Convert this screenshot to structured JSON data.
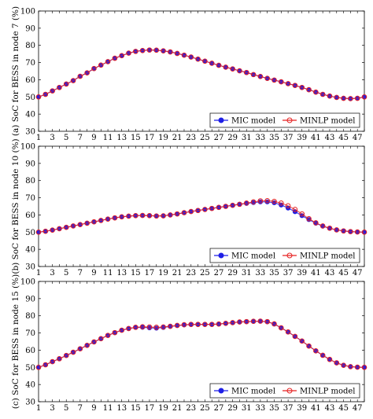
{
  "colors": {
    "mic": "#1f1fe6",
    "minlp": "#e62020",
    "line": "#cc2a8c"
  },
  "chart_data": [
    {
      "type": "line",
      "ylabel": "(a) SoC for BESS in node 7 (%)",
      "ylim": [
        30,
        100
      ],
      "yticks": [
        30,
        40,
        50,
        60,
        70,
        80,
        90,
        100
      ],
      "x": [
        1,
        2,
        3,
        4,
        5,
        6,
        7,
        8,
        9,
        10,
        11,
        12,
        13,
        14,
        15,
        16,
        17,
        18,
        19,
        20,
        21,
        22,
        23,
        24,
        25,
        26,
        27,
        28,
        29,
        30,
        31,
        32,
        33,
        34,
        35,
        36,
        37,
        38,
        39,
        40,
        41,
        42,
        43,
        44,
        45,
        46,
        47,
        48
      ],
      "xticks": [
        1,
        3,
        5,
        7,
        9,
        11,
        13,
        15,
        17,
        19,
        21,
        23,
        25,
        27,
        29,
        31,
        33,
        35,
        37,
        39,
        41,
        43,
        45,
        47
      ],
      "legend": "bottom-right",
      "series": [
        {
          "name": "MIC model",
          "values": [
            50,
            51.5,
            53.5,
            55.5,
            57.5,
            59.5,
            62,
            64,
            66.5,
            68.5,
            70.5,
            72.5,
            74,
            75.5,
            76.5,
            77,
            77.3,
            77.2,
            76.8,
            76.2,
            75.3,
            74.3,
            73.2,
            72,
            70.8,
            69.6,
            68.4,
            67.3,
            66.3,
            65.2,
            64.2,
            63,
            61.9,
            60.8,
            59.8,
            58.8,
            57.7,
            56.7,
            55.5,
            54.2,
            52.8,
            51.5,
            50.5,
            49.7,
            49.2,
            49,
            49.2,
            50
          ]
        },
        {
          "name": "MINLP model",
          "values": [
            50,
            51.5,
            53.5,
            55.5,
            57.5,
            59.5,
            62,
            64,
            66.5,
            68.5,
            70.5,
            72.5,
            74,
            75.5,
            76.5,
            77,
            77.3,
            77.2,
            76.8,
            76.2,
            75.3,
            74.3,
            73.2,
            72,
            70.8,
            69.6,
            68.4,
            67.3,
            66.3,
            65.2,
            64.2,
            63,
            61.9,
            60.8,
            59.8,
            58.8,
            57.7,
            56.7,
            55.5,
            54.2,
            52.8,
            51.5,
            50.5,
            49.7,
            49.2,
            49,
            49.2,
            50
          ]
        }
      ]
    },
    {
      "type": "line",
      "ylabel": "(b) SoC for BESS in node 10 (%)",
      "ylim": [
        30,
        100
      ],
      "yticks": [
        30,
        40,
        50,
        60,
        70,
        80,
        90,
        100
      ],
      "x": [
        1,
        2,
        3,
        4,
        5,
        6,
        7,
        8,
        9,
        10,
        11,
        12,
        13,
        14,
        15,
        16,
        17,
        18,
        19,
        20,
        21,
        22,
        23,
        24,
        25,
        26,
        27,
        28,
        29,
        30,
        31,
        32,
        33,
        34,
        35,
        36,
        37,
        38,
        39,
        40,
        41,
        42,
        43,
        44,
        45,
        46,
        47,
        48
      ],
      "xticks": [
        1,
        3,
        5,
        7,
        9,
        11,
        13,
        15,
        17,
        19,
        21,
        23,
        25,
        27,
        29,
        31,
        33,
        35,
        37,
        39,
        41,
        43,
        45,
        47
      ],
      "legend": "bottom-right",
      "series": [
        {
          "name": "MIC model",
          "values": [
            50,
            50.5,
            51.2,
            52,
            52.8,
            53.6,
            54.4,
            55.2,
            56,
            56.8,
            57.6,
            58.3,
            58.9,
            59.3,
            59.6,
            59.7,
            59.6,
            59.4,
            59.5,
            60,
            60.6,
            61.3,
            62,
            62.6,
            63.2,
            63.8,
            64.4,
            65,
            65.6,
            66.2,
            66.7,
            67.2,
            67.6,
            67.6,
            67.1,
            65.8,
            64,
            61.9,
            59.6,
            57.3,
            55.2,
            53.5,
            52.2,
            51.3,
            50.7,
            50.3,
            50.1,
            50
          ]
        },
        {
          "name": "MINLP model",
          "values": [
            50,
            50.5,
            51.2,
            52,
            52.8,
            53.6,
            54.4,
            55.2,
            56,
            56.8,
            57.6,
            58.3,
            58.9,
            59.3,
            59.6,
            59.7,
            59.6,
            59.4,
            59.5,
            60,
            60.6,
            61.3,
            62,
            62.6,
            63.2,
            63.8,
            64.4,
            65,
            65.6,
            66.2,
            66.9,
            67.6,
            68.2,
            68.3,
            67.9,
            66.9,
            65.3,
            63.2,
            60.6,
            57.8,
            55.4,
            53.6,
            52.3,
            51.3,
            50.7,
            50.3,
            50.1,
            50
          ]
        }
      ]
    },
    {
      "type": "line",
      "ylabel": "(c) SoC for BESS in node 15 (%)",
      "ylim": [
        30,
        100
      ],
      "yticks": [
        30,
        40,
        50,
        60,
        70,
        80,
        90,
        100
      ],
      "x": [
        1,
        2,
        3,
        4,
        5,
        6,
        7,
        8,
        9,
        10,
        11,
        12,
        13,
        14,
        15,
        16,
        17,
        18,
        19,
        20,
        21,
        22,
        23,
        24,
        25,
        26,
        27,
        28,
        29,
        30,
        31,
        32,
        33,
        34,
        35,
        36,
        37,
        38,
        39,
        40,
        41,
        42,
        43,
        44,
        45,
        46,
        47,
        48
      ],
      "xticks": [
        1,
        3,
        5,
        7,
        9,
        11,
        13,
        15,
        17,
        19,
        21,
        23,
        25,
        27,
        29,
        31,
        33,
        35,
        37,
        39,
        41,
        43,
        45,
        47
      ],
      "legend": "bottom-right",
      "series": [
        {
          "name": "MIC model",
          "values": [
            50,
            51.5,
            53.3,
            55,
            56.9,
            58.8,
            60.8,
            62.8,
            64.8,
            66.7,
            68.6,
            70.2,
            71.6,
            72.6,
            73.2,
            73.3,
            73,
            72.8,
            73.2,
            73.8,
            74.3,
            74.7,
            74.9,
            75,
            75,
            75,
            75.2,
            75.6,
            76,
            76.4,
            76.6,
            76.7,
            76.8,
            76.5,
            75.2,
            73,
            70.6,
            68,
            65.3,
            62.4,
            59.6,
            57,
            54.6,
            52.6,
            51.2,
            50.4,
            50.1,
            50
          ]
        },
        {
          "name": "MINLP model",
          "values": [
            50,
            51.5,
            53.3,
            55,
            56.9,
            58.8,
            60.8,
            62.8,
            64.8,
            66.7,
            68.6,
            70.2,
            71.6,
            72.6,
            73.3,
            73.6,
            73.5,
            73.3,
            73.5,
            73.9,
            74.4,
            74.8,
            75,
            75,
            75,
            75,
            75.2,
            75.6,
            76,
            76.4,
            76.6,
            76.8,
            76.9,
            76.6,
            75.3,
            73,
            70.6,
            68,
            65.3,
            62.4,
            59.6,
            57,
            54.6,
            52.6,
            51.2,
            50.4,
            50.1,
            50
          ]
        }
      ]
    }
  ]
}
